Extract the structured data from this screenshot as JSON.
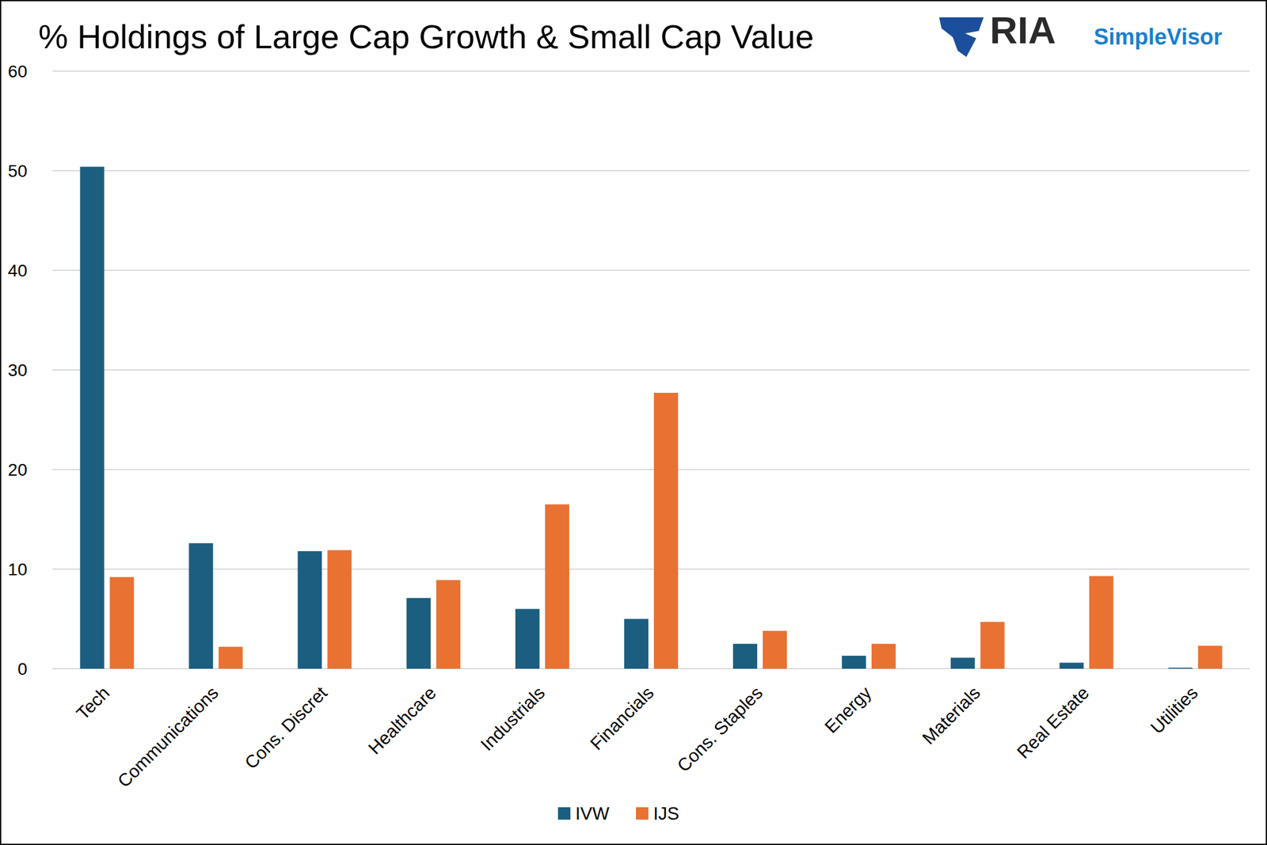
{
  "chart_data": {
    "type": "bar",
    "title": "% Holdings of Large Cap Growth & Small Cap Value",
    "annotations": [
      "RIA",
      "SimpleVisor"
    ],
    "categories": [
      "Tech",
      "Communications",
      "Cons. Discret",
      "Healthcare",
      "Industrials",
      "Financials",
      "Cons. Staples",
      "Energy",
      "Materials",
      "Real Estate",
      "Utilities"
    ],
    "series": [
      {
        "name": "IVW",
        "color": "#1b5e80",
        "values": [
          50.4,
          12.6,
          11.8,
          7.1,
          6.0,
          5.0,
          2.5,
          1.3,
          1.1,
          0.6,
          0.1
        ]
      },
      {
        "name": "IJS",
        "color": "#e97132",
        "values": [
          9.2,
          2.2,
          11.9,
          8.9,
          16.5,
          27.7,
          3.8,
          2.5,
          4.7,
          9.3,
          2.3
        ]
      }
    ],
    "ylim": [
      0,
      60
    ],
    "yticks": [
      0,
      10,
      20,
      30,
      40,
      50,
      60
    ],
    "grid": true,
    "legend": "bottom"
  }
}
